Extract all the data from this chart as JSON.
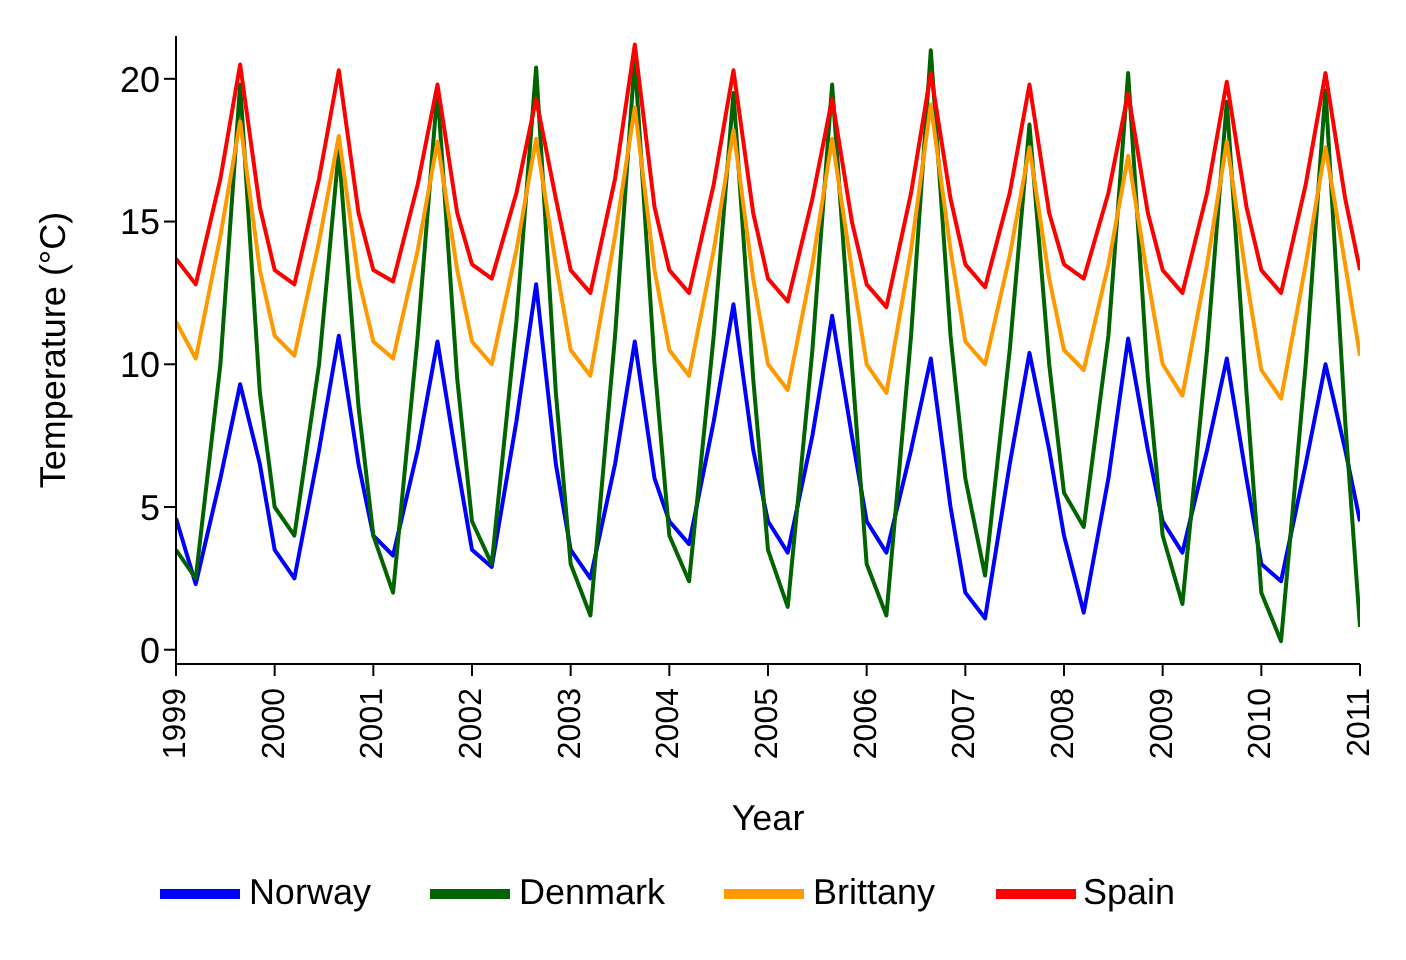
{
  "chart_data": {
    "type": "line",
    "xlabel": "Year",
    "ylabel": "Temperature (°C)",
    "x": [
      1999,
      1999.2,
      1999.45,
      1999.65,
      1999.85,
      2000,
      2000.2,
      2000.45,
      2000.65,
      2000.85,
      2001,
      2001.2,
      2001.45,
      2001.65,
      2001.85,
      2002,
      2002.2,
      2002.45,
      2002.65,
      2002.85,
      2003,
      2003.2,
      2003.45,
      2003.65,
      2003.85,
      2004,
      2004.2,
      2004.45,
      2004.65,
      2004.85,
      2005,
      2005.2,
      2005.45,
      2005.65,
      2005.85,
      2006,
      2006.2,
      2006.45,
      2006.65,
      2006.85,
      2007,
      2007.2,
      2007.45,
      2007.65,
      2007.85,
      2008,
      2008.2,
      2008.45,
      2008.65,
      2008.85,
      2009,
      2009.2,
      2009.45,
      2009.65,
      2009.85,
      2010,
      2010.2,
      2010.45,
      2010.65,
      2010.85,
      2011
    ],
    "series": [
      {
        "name": "Norway",
        "color": "#0000ff",
        "values": [
          4.6,
          2.3,
          6.0,
          9.3,
          6.5,
          3.5,
          2.5,
          7.0,
          11.0,
          6.5,
          4.0,
          3.3,
          7.0,
          10.8,
          6.5,
          3.5,
          2.9,
          8.0,
          12.8,
          6.5,
          3.5,
          2.5,
          6.5,
          10.8,
          6.0,
          4.5,
          3.7,
          8.0,
          12.1,
          7.0,
          4.5,
          3.4,
          7.5,
          11.7,
          7.5,
          4.5,
          3.4,
          7.0,
          10.2,
          5.0,
          2.0,
          1.1,
          6.5,
          10.4,
          7.0,
          4.0,
          1.3,
          6.0,
          10.9,
          7.0,
          4.5,
          3.4,
          7.0,
          10.2,
          6.0,
          3.0,
          2.4,
          6.5,
          10.0,
          7.0,
          4.5
        ]
      },
      {
        "name": "Denmark",
        "color": "#006400",
        "values": [
          3.5,
          2.5,
          10.0,
          19.8,
          9.0,
          5.0,
          4.0,
          10.0,
          17.5,
          8.5,
          4.0,
          2.0,
          11.0,
          19.6,
          9.5,
          4.5,
          3.0,
          11.5,
          20.4,
          9.0,
          3.0,
          1.2,
          11.0,
          20.7,
          10.0,
          4.0,
          2.4,
          11.0,
          19.5,
          9.5,
          3.5,
          1.5,
          10.5,
          19.8,
          10.0,
          3.0,
          1.2,
          11.0,
          21.0,
          11.0,
          6.0,
          2.6,
          10.5,
          18.4,
          10.0,
          5.5,
          4.3,
          11.0,
          20.2,
          9.5,
          4.0,
          1.6,
          10.5,
          19.2,
          9.0,
          2.0,
          0.3,
          10.0,
          19.6,
          8.0,
          0.8
        ]
      },
      {
        "name": "Brittany",
        "color": "#ff9900",
        "values": [
          11.5,
          10.2,
          14.5,
          18.5,
          13.3,
          11.0,
          10.3,
          14.3,
          18.0,
          13.0,
          10.8,
          10.2,
          14.0,
          17.8,
          13.3,
          10.8,
          10.0,
          14.0,
          17.9,
          13.5,
          10.5,
          9.6,
          14.5,
          19.0,
          13.3,
          10.5,
          9.6,
          14.0,
          18.2,
          13.0,
          10.0,
          9.1,
          13.5,
          17.9,
          13.3,
          10.0,
          9.0,
          14.0,
          19.1,
          14.0,
          10.8,
          10.0,
          13.8,
          17.6,
          13.0,
          10.5,
          9.8,
          13.5,
          17.3,
          13.0,
          10.0,
          8.9,
          13.5,
          17.8,
          13.0,
          9.8,
          8.8,
          13.5,
          17.6,
          13.5,
          10.3
        ]
      },
      {
        "name": "Spain",
        "color": "#ff0000",
        "values": [
          13.7,
          12.8,
          16.5,
          20.5,
          15.5,
          13.3,
          12.8,
          16.5,
          20.3,
          15.3,
          13.3,
          12.9,
          16.3,
          19.8,
          15.3,
          13.5,
          13.0,
          16.0,
          19.3,
          15.8,
          13.3,
          12.5,
          16.5,
          21.2,
          15.5,
          13.3,
          12.5,
          16.3,
          20.3,
          15.3,
          13.0,
          12.2,
          15.8,
          19.3,
          15.0,
          12.8,
          12.0,
          16.0,
          20.2,
          15.8,
          13.5,
          12.7,
          16.0,
          19.8,
          15.3,
          13.5,
          13.0,
          16.0,
          19.5,
          15.3,
          13.3,
          12.5,
          16.0,
          19.9,
          15.5,
          13.3,
          12.5,
          16.3,
          20.2,
          15.8,
          13.3
        ]
      }
    ],
    "xlim": [
      1999,
      2011
    ],
    "xticks": [
      1999,
      2000,
      2001,
      2002,
      2003,
      2004,
      2005,
      2006,
      2007,
      2008,
      2009,
      2010,
      2011
    ],
    "ylim": [
      -0.5,
      21.5
    ],
    "yticks": [
      0,
      5,
      10,
      15,
      20
    ],
    "grid": false,
    "legend": "bottom",
    "marker": "none",
    "line_style": "solid"
  }
}
